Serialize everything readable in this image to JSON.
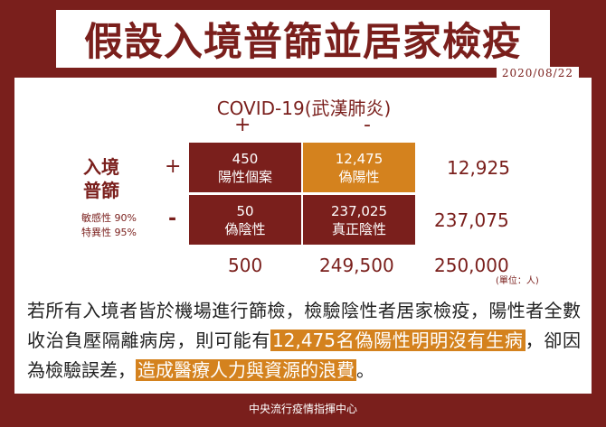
{
  "title": "假設入境普篩並居家檢疫",
  "date": "2020/08/22",
  "table": {
    "column_header": "COVID-19(武漢肺炎)",
    "col_plus": "+",
    "col_minus": "-",
    "row_label_line1": "入境",
    "row_label_line2": "普篩",
    "row_plus": "+",
    "row_minus": "-",
    "sensitivity": "敏感性 90%",
    "specificity": "特異性 95%",
    "cells": {
      "tp_value": "450",
      "tp_label": "陽性個案",
      "fp_value": "12,475",
      "fp_label": "偽陽性",
      "fn_value": "50",
      "fn_label": "偽陰性",
      "tn_value": "237,025",
      "tn_label": "真正陰性"
    },
    "row_total_pos": "12,925",
    "row_total_neg": "237,075",
    "col_total_pos": "500",
    "col_total_neg": "249,500",
    "grand_total": "250,000",
    "unit": "(單位：人)"
  },
  "paragraph": {
    "part1": "若所有入境者皆於機場進行篩檢，檢驗陰性者居家檢疫，陽性者全數收治負壓隔離病房，則可能有",
    "highlight1": "12,475名偽陽性明明沒有生病",
    "part2": "，卻因為檢驗誤差，",
    "highlight2": "造成醫療人力與資源的浪費",
    "part3": "。"
  },
  "footer": "中央流行疫情指揮中心",
  "colors": {
    "maroon": "#7a1f1c",
    "orange": "#d4821e"
  }
}
